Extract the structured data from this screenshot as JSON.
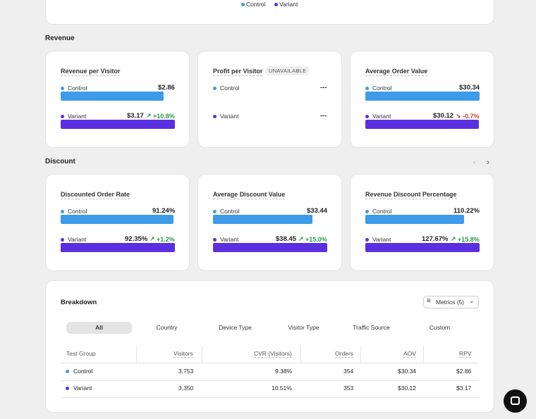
{
  "legend": {
    "items": [
      {
        "name": "Control",
        "color": "#3d9be9"
      },
      {
        "name": "Variant",
        "color": "#5a2fe0"
      }
    ]
  },
  "sections": [
    {
      "title": "Revenue",
      "cards": [
        {
          "title": "Revenue per Visitor",
          "rows": [
            {
              "name": "Control",
              "value": {
                "value": 2.86,
                "label": "$2.86"
              }
            },
            {
              "name": "Variant",
              "value": {
                "value": 3.17,
                "label": "$3.17"
              },
              "change": {
                "value": 10.8,
                "label": "+10.8%"
              }
            }
          ]
        },
        {
          "title": "Profit per Visitor",
          "badge": "UNAVAILABLE",
          "rows": [
            {
              "name": "Control",
              "value": {
                "label": "---"
              }
            },
            {
              "name": "Variant",
              "value": {
                "label": "---"
              }
            }
          ]
        },
        {
          "title": "Average Order Value",
          "rows": [
            {
              "name": "Control",
              "value": {
                "value": 30.34,
                "label": "$30.34"
              }
            },
            {
              "name": "Variant",
              "value": {
                "value": 30.12,
                "label": "$30.12"
              },
              "change": {
                "value": -0.7,
                "label": "-0.7%"
              }
            }
          ]
        }
      ]
    },
    {
      "title": "Discount",
      "cards": [
        {
          "title": "Discounted Order Rate",
          "rows": [
            {
              "name": "Control",
              "value": {
                "value": 91.24,
                "label": "91.24%"
              }
            },
            {
              "name": "Variant",
              "value": {
                "value": 92.35,
                "label": "92.35%"
              },
              "change": {
                "value": 1.2,
                "label": "+1.2%"
              }
            }
          ]
        },
        {
          "title": "Average Discount Value",
          "rows": [
            {
              "name": "Control",
              "value": {
                "value": 33.44,
                "label": "$33.44"
              }
            },
            {
              "name": "Variant",
              "value": {
                "value": 38.45,
                "label": "$38.45"
              },
              "change": {
                "value": 15.0,
                "label": "+15.0%"
              }
            }
          ]
        },
        {
          "title": "Revenue Discount Percentage",
          "rows": [
            {
              "name": "Control",
              "value": {
                "value": 110.22,
                "label": "110.22%"
              }
            },
            {
              "name": "Variant",
              "value": {
                "value": 127.67,
                "label": "127.67%"
              },
              "change": {
                "value": 15.8,
                "label": "+15.8%"
              }
            }
          ]
        }
      ]
    }
  ],
  "breakdown": {
    "title": "Breakdown",
    "metrics_button": "Metrics (5)",
    "tabs": [
      "All",
      "Country",
      "Device Type",
      "Visitor Type",
      "Traffic Source",
      "Custom"
    ],
    "table": {
      "columns": [
        "Test Group",
        "Visitors",
        "CVR (Visitors)",
        "Orders",
        "AOV",
        "RPV"
      ],
      "rows": [
        [
          "Control",
          "3,753",
          "9.38%",
          "354",
          "$30.34",
          "$2.86"
        ],
        [
          "Variant",
          "3,350",
          "10.51%",
          "353",
          "$30.12",
          "$3.17"
        ]
      ]
    }
  }
}
